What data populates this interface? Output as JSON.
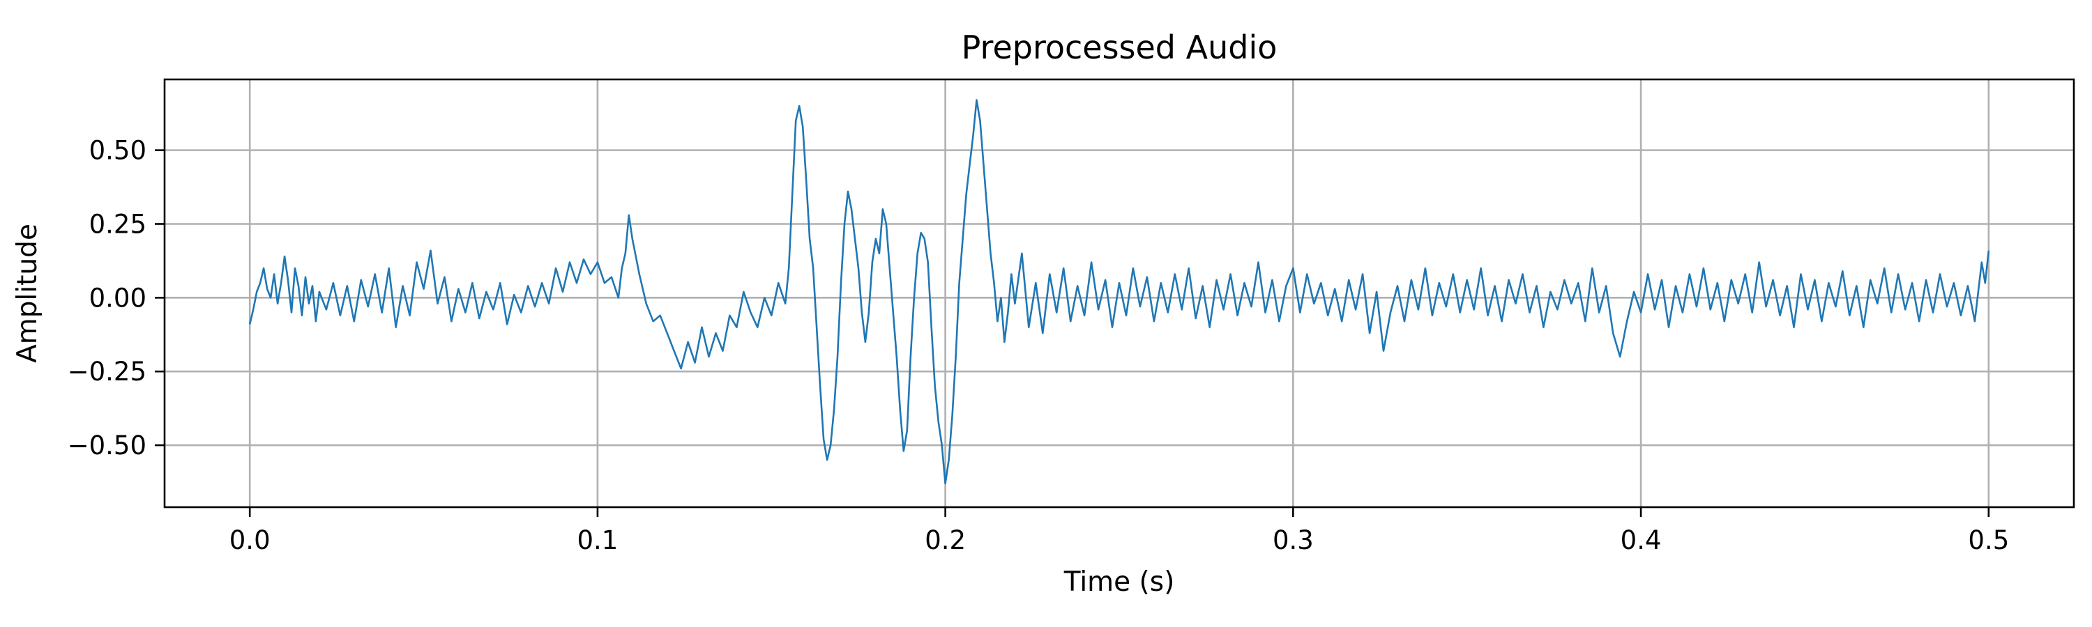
{
  "chart_data": {
    "type": "line",
    "title": "Preprocessed Audio",
    "xlabel": "Time (s)",
    "ylabel": "Amplitude",
    "xlim": [
      -0.0245,
      0.5245
    ],
    "ylim": [
      -0.71,
      0.74
    ],
    "xticks": [
      0.0,
      0.1,
      0.2,
      0.3,
      0.4,
      0.5
    ],
    "xtick_labels": [
      "0.0",
      "0.1",
      "0.2",
      "0.3",
      "0.4",
      "0.5"
    ],
    "yticks": [
      -0.5,
      -0.25,
      0.0,
      0.25,
      0.5
    ],
    "ytick_labels": [
      "−0.50",
      "−0.25",
      "0.00",
      "0.25",
      "0.50"
    ],
    "grid": true,
    "legend": "none",
    "series": [
      {
        "color": "#1f77b4",
        "points": [
          [
            0.0,
            -0.09
          ],
          [
            0.001,
            -0.04
          ],
          [
            0.002,
            0.02
          ],
          [
            0.003,
            0.05
          ],
          [
            0.004,
            0.1
          ],
          [
            0.005,
            0.03
          ],
          [
            0.006,
            0.0
          ],
          [
            0.007,
            0.08
          ],
          [
            0.008,
            -0.02
          ],
          [
            0.009,
            0.05
          ],
          [
            0.01,
            0.14
          ],
          [
            0.011,
            0.06
          ],
          [
            0.012,
            -0.05
          ],
          [
            0.013,
            0.1
          ],
          [
            0.014,
            0.04
          ],
          [
            0.015,
            -0.06
          ],
          [
            0.016,
            0.07
          ],
          [
            0.017,
            -0.02
          ],
          [
            0.018,
            0.04
          ],
          [
            0.019,
            -0.08
          ],
          [
            0.02,
            0.02
          ],
          [
            0.022,
            -0.04
          ],
          [
            0.024,
            0.05
          ],
          [
            0.026,
            -0.06
          ],
          [
            0.028,
            0.04
          ],
          [
            0.03,
            -0.08
          ],
          [
            0.032,
            0.06
          ],
          [
            0.034,
            -0.03
          ],
          [
            0.036,
            0.08
          ],
          [
            0.038,
            -0.05
          ],
          [
            0.04,
            0.1
          ],
          [
            0.042,
            -0.1
          ],
          [
            0.044,
            0.04
          ],
          [
            0.046,
            -0.06
          ],
          [
            0.048,
            0.12
          ],
          [
            0.05,
            0.03
          ],
          [
            0.052,
            0.16
          ],
          [
            0.054,
            -0.02
          ],
          [
            0.056,
            0.07
          ],
          [
            0.058,
            -0.08
          ],
          [
            0.06,
            0.03
          ],
          [
            0.062,
            -0.05
          ],
          [
            0.064,
            0.05
          ],
          [
            0.066,
            -0.07
          ],
          [
            0.068,
            0.02
          ],
          [
            0.07,
            -0.04
          ],
          [
            0.072,
            0.05
          ],
          [
            0.074,
            -0.09
          ],
          [
            0.076,
            0.01
          ],
          [
            0.078,
            -0.05
          ],
          [
            0.08,
            0.04
          ],
          [
            0.082,
            -0.03
          ],
          [
            0.084,
            0.05
          ],
          [
            0.086,
            -0.02
          ],
          [
            0.088,
            0.1
          ],
          [
            0.09,
            0.02
          ],
          [
            0.092,
            0.12
          ],
          [
            0.094,
            0.05
          ],
          [
            0.096,
            0.13
          ],
          [
            0.098,
            0.08
          ],
          [
            0.1,
            0.12
          ],
          [
            0.102,
            0.05
          ],
          [
            0.104,
            0.07
          ],
          [
            0.106,
            0.0
          ],
          [
            0.107,
            0.1
          ],
          [
            0.108,
            0.15
          ],
          [
            0.109,
            0.28
          ],
          [
            0.11,
            0.2
          ],
          [
            0.112,
            0.08
          ],
          [
            0.114,
            -0.02
          ],
          [
            0.116,
            -0.08
          ],
          [
            0.118,
            -0.06
          ],
          [
            0.12,
            -0.12
          ],
          [
            0.122,
            -0.18
          ],
          [
            0.124,
            -0.24
          ],
          [
            0.126,
            -0.15
          ],
          [
            0.128,
            -0.22
          ],
          [
            0.13,
            -0.1
          ],
          [
            0.132,
            -0.2
          ],
          [
            0.134,
            -0.12
          ],
          [
            0.136,
            -0.18
          ],
          [
            0.138,
            -0.06
          ],
          [
            0.14,
            -0.1
          ],
          [
            0.142,
            0.02
          ],
          [
            0.144,
            -0.05
          ],
          [
            0.146,
            -0.1
          ],
          [
            0.148,
            0.0
          ],
          [
            0.15,
            -0.06
          ],
          [
            0.152,
            0.05
          ],
          [
            0.154,
            -0.02
          ],
          [
            0.155,
            0.1
          ],
          [
            0.156,
            0.35
          ],
          [
            0.157,
            0.6
          ],
          [
            0.158,
            0.65
          ],
          [
            0.159,
            0.58
          ],
          [
            0.16,
            0.4
          ],
          [
            0.161,
            0.2
          ],
          [
            0.162,
            0.1
          ],
          [
            0.163,
            -0.1
          ],
          [
            0.164,
            -0.3
          ],
          [
            0.165,
            -0.48
          ],
          [
            0.166,
            -0.55
          ],
          [
            0.167,
            -0.5
          ],
          [
            0.168,
            -0.38
          ],
          [
            0.169,
            -0.2
          ],
          [
            0.17,
            0.05
          ],
          [
            0.171,
            0.25
          ],
          [
            0.172,
            0.36
          ],
          [
            0.173,
            0.3
          ],
          [
            0.174,
            0.2
          ],
          [
            0.175,
            0.1
          ],
          [
            0.176,
            -0.05
          ],
          [
            0.177,
            -0.15
          ],
          [
            0.178,
            -0.05
          ],
          [
            0.179,
            0.12
          ],
          [
            0.18,
            0.2
          ],
          [
            0.181,
            0.15
          ],
          [
            0.182,
            0.3
          ],
          [
            0.183,
            0.25
          ],
          [
            0.184,
            0.1
          ],
          [
            0.185,
            -0.05
          ],
          [
            0.186,
            -0.2
          ],
          [
            0.187,
            -0.38
          ],
          [
            0.188,
            -0.52
          ],
          [
            0.189,
            -0.45
          ],
          [
            0.19,
            -0.2
          ],
          [
            0.191,
            0.0
          ],
          [
            0.192,
            0.15
          ],
          [
            0.193,
            0.22
          ],
          [
            0.194,
            0.2
          ],
          [
            0.195,
            0.12
          ],
          [
            0.196,
            -0.1
          ],
          [
            0.197,
            -0.3
          ],
          [
            0.198,
            -0.42
          ],
          [
            0.199,
            -0.5
          ],
          [
            0.2,
            -0.63
          ],
          [
            0.201,
            -0.55
          ],
          [
            0.202,
            -0.4
          ],
          [
            0.203,
            -0.2
          ],
          [
            0.204,
            0.05
          ],
          [
            0.205,
            0.2
          ],
          [
            0.206,
            0.35
          ],
          [
            0.207,
            0.45
          ],
          [
            0.208,
            0.55
          ],
          [
            0.209,
            0.67
          ],
          [
            0.21,
            0.6
          ],
          [
            0.211,
            0.45
          ],
          [
            0.212,
            0.3
          ],
          [
            0.213,
            0.15
          ],
          [
            0.214,
            0.05
          ],
          [
            0.215,
            -0.08
          ],
          [
            0.216,
            0.0
          ],
          [
            0.217,
            -0.15
          ],
          [
            0.218,
            -0.05
          ],
          [
            0.219,
            0.08
          ],
          [
            0.22,
            -0.02
          ],
          [
            0.222,
            0.15
          ],
          [
            0.224,
            -0.1
          ],
          [
            0.226,
            0.05
          ],
          [
            0.228,
            -0.12
          ],
          [
            0.23,
            0.08
          ],
          [
            0.232,
            -0.05
          ],
          [
            0.234,
            0.1
          ],
          [
            0.236,
            -0.08
          ],
          [
            0.238,
            0.04
          ],
          [
            0.24,
            -0.06
          ],
          [
            0.242,
            0.12
          ],
          [
            0.244,
            -0.04
          ],
          [
            0.246,
            0.06
          ],
          [
            0.248,
            -0.1
          ],
          [
            0.25,
            0.05
          ],
          [
            0.252,
            -0.06
          ],
          [
            0.254,
            0.1
          ],
          [
            0.256,
            -0.03
          ],
          [
            0.258,
            0.07
          ],
          [
            0.26,
            -0.08
          ],
          [
            0.262,
            0.05
          ],
          [
            0.264,
            -0.05
          ],
          [
            0.266,
            0.08
          ],
          [
            0.268,
            -0.04
          ],
          [
            0.27,
            0.1
          ],
          [
            0.272,
            -0.07
          ],
          [
            0.274,
            0.04
          ],
          [
            0.276,
            -0.1
          ],
          [
            0.278,
            0.06
          ],
          [
            0.28,
            -0.04
          ],
          [
            0.282,
            0.08
          ],
          [
            0.284,
            -0.06
          ],
          [
            0.286,
            0.05
          ],
          [
            0.288,
            -0.03
          ],
          [
            0.29,
            0.12
          ],
          [
            0.292,
            -0.05
          ],
          [
            0.294,
            0.06
          ],
          [
            0.296,
            -0.08
          ],
          [
            0.298,
            0.04
          ],
          [
            0.3,
            0.1
          ],
          [
            0.302,
            -0.05
          ],
          [
            0.304,
            0.08
          ],
          [
            0.306,
            -0.02
          ],
          [
            0.308,
            0.05
          ],
          [
            0.31,
            -0.06
          ],
          [
            0.312,
            0.03
          ],
          [
            0.314,
            -0.08
          ],
          [
            0.316,
            0.06
          ],
          [
            0.318,
            -0.04
          ],
          [
            0.32,
            0.08
          ],
          [
            0.322,
            -0.12
          ],
          [
            0.324,
            0.02
          ],
          [
            0.326,
            -0.18
          ],
          [
            0.328,
            -0.05
          ],
          [
            0.33,
            0.04
          ],
          [
            0.332,
            -0.08
          ],
          [
            0.334,
            0.06
          ],
          [
            0.336,
            -0.04
          ],
          [
            0.338,
            0.1
          ],
          [
            0.34,
            -0.06
          ],
          [
            0.342,
            0.05
          ],
          [
            0.344,
            -0.03
          ],
          [
            0.346,
            0.08
          ],
          [
            0.348,
            -0.05
          ],
          [
            0.35,
            0.06
          ],
          [
            0.352,
            -0.04
          ],
          [
            0.354,
            0.1
          ],
          [
            0.356,
            -0.06
          ],
          [
            0.358,
            0.04
          ],
          [
            0.36,
            -0.08
          ],
          [
            0.362,
            0.06
          ],
          [
            0.364,
            -0.02
          ],
          [
            0.366,
            0.08
          ],
          [
            0.368,
            -0.05
          ],
          [
            0.37,
            0.04
          ],
          [
            0.372,
            -0.1
          ],
          [
            0.374,
            0.02
          ],
          [
            0.376,
            -0.04
          ],
          [
            0.378,
            0.06
          ],
          [
            0.38,
            -0.02
          ],
          [
            0.382,
            0.05
          ],
          [
            0.384,
            -0.08
          ],
          [
            0.386,
            0.1
          ],
          [
            0.388,
            -0.05
          ],
          [
            0.39,
            0.04
          ],
          [
            0.392,
            -0.12
          ],
          [
            0.394,
            -0.2
          ],
          [
            0.396,
            -0.08
          ],
          [
            0.398,
            0.02
          ],
          [
            0.4,
            -0.05
          ],
          [
            0.402,
            0.08
          ],
          [
            0.404,
            -0.04
          ],
          [
            0.406,
            0.06
          ],
          [
            0.408,
            -0.1
          ],
          [
            0.41,
            0.04
          ],
          [
            0.412,
            -0.05
          ],
          [
            0.414,
            0.08
          ],
          [
            0.416,
            -0.03
          ],
          [
            0.418,
            0.1
          ],
          [
            0.42,
            -0.04
          ],
          [
            0.422,
            0.05
          ],
          [
            0.424,
            -0.08
          ],
          [
            0.426,
            0.06
          ],
          [
            0.428,
            -0.02
          ],
          [
            0.43,
            0.08
          ],
          [
            0.432,
            -0.05
          ],
          [
            0.434,
            0.12
          ],
          [
            0.436,
            -0.03
          ],
          [
            0.438,
            0.06
          ],
          [
            0.44,
            -0.06
          ],
          [
            0.442,
            0.04
          ],
          [
            0.444,
            -0.1
          ],
          [
            0.446,
            0.08
          ],
          [
            0.448,
            -0.04
          ],
          [
            0.45,
            0.06
          ],
          [
            0.452,
            -0.08
          ],
          [
            0.454,
            0.05
          ],
          [
            0.456,
            -0.03
          ],
          [
            0.458,
            0.09
          ],
          [
            0.46,
            -0.06
          ],
          [
            0.462,
            0.04
          ],
          [
            0.464,
            -0.1
          ],
          [
            0.466,
            0.06
          ],
          [
            0.468,
            -0.02
          ],
          [
            0.47,
            0.1
          ],
          [
            0.472,
            -0.05
          ],
          [
            0.474,
            0.08
          ],
          [
            0.476,
            -0.04
          ],
          [
            0.478,
            0.05
          ],
          [
            0.48,
            -0.08
          ],
          [
            0.482,
            0.06
          ],
          [
            0.484,
            -0.05
          ],
          [
            0.486,
            0.08
          ],
          [
            0.488,
            -0.03
          ],
          [
            0.49,
            0.05
          ],
          [
            0.492,
            -0.06
          ],
          [
            0.494,
            0.04
          ],
          [
            0.496,
            -0.08
          ],
          [
            0.498,
            0.12
          ],
          [
            0.499,
            0.05
          ],
          [
            0.5,
            0.16
          ]
        ]
      }
    ]
  }
}
